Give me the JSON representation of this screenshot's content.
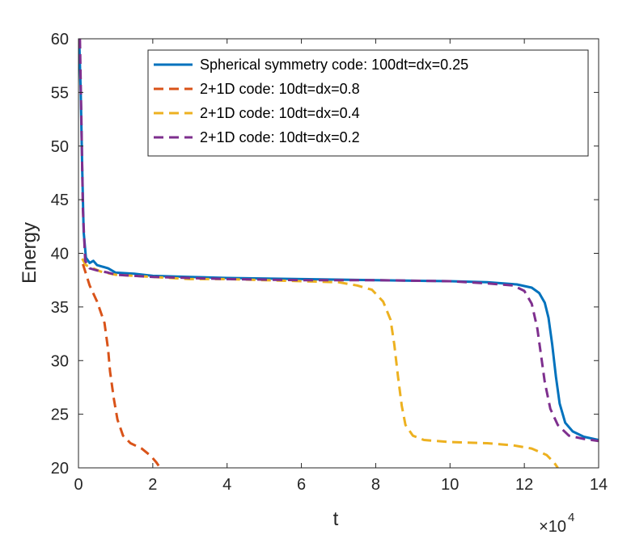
{
  "chart_data": {
    "type": "line",
    "title": "",
    "xlabel": "t",
    "ylabel": "Energy",
    "x_exponent_base": "×10",
    "x_exponent_power": "4",
    "xlim": [
      0,
      14
    ],
    "ylim": [
      20,
      60
    ],
    "x_ticks": [
      "0",
      "2",
      "4",
      "6",
      "8",
      "10",
      "12",
      "14"
    ],
    "y_ticks": [
      "20",
      "25",
      "30",
      "35",
      "40",
      "45",
      "50",
      "55",
      "60"
    ],
    "grid": false,
    "legend_position": "top-right",
    "series": [
      {
        "name": "Spherical symmetry code: 100dt=dx=0.25",
        "color": "#0072BD",
        "style": "solid",
        "points": [
          [
            0.02,
            60
          ],
          [
            0.06,
            55
          ],
          [
            0.1,
            48
          ],
          [
            0.14,
            42
          ],
          [
            0.2,
            39.6
          ],
          [
            0.3,
            39.1
          ],
          [
            0.4,
            39.3
          ],
          [
            0.5,
            38.9
          ],
          [
            0.6,
            38.8
          ],
          [
            0.8,
            38.6
          ],
          [
            1.0,
            38.2
          ],
          [
            1.5,
            38.1
          ],
          [
            2.0,
            37.9
          ],
          [
            3.0,
            37.8
          ],
          [
            4.0,
            37.7
          ],
          [
            6.0,
            37.6
          ],
          [
            8.0,
            37.5
          ],
          [
            10.0,
            37.4
          ],
          [
            11.0,
            37.3
          ],
          [
            11.8,
            37.1
          ],
          [
            12.2,
            36.8
          ],
          [
            12.4,
            36.3
          ],
          [
            12.55,
            35.4
          ],
          [
            12.65,
            34.0
          ],
          [
            12.75,
            31.5
          ],
          [
            12.85,
            28.5
          ],
          [
            12.95,
            26.0
          ],
          [
            13.1,
            24.2
          ],
          [
            13.3,
            23.4
          ],
          [
            13.6,
            22.9
          ],
          [
            14.0,
            22.6
          ]
        ]
      },
      {
        "name": "2+1D code: 10dt=dx=0.8",
        "color": "#D95319",
        "style": "dashed",
        "points": [
          [
            0.12,
            39.0
          ],
          [
            0.3,
            37.0
          ],
          [
            0.5,
            35.5
          ],
          [
            0.7,
            33.5
          ],
          [
            0.8,
            31.0
          ],
          [
            0.85,
            29.0
          ],
          [
            0.95,
            26.5
          ],
          [
            1.05,
            24.5
          ],
          [
            1.2,
            23.0
          ],
          [
            1.4,
            22.3
          ],
          [
            1.7,
            21.8
          ],
          [
            1.95,
            21.1
          ],
          [
            2.1,
            20.5
          ],
          [
            2.2,
            20.0
          ]
        ]
      },
      {
        "name": "2+1D code: 10dt=dx=0.4",
        "color": "#EDB120",
        "style": "dashed",
        "points": [
          [
            0.1,
            39.5
          ],
          [
            0.2,
            38.9
          ],
          [
            0.4,
            38.6
          ],
          [
            0.6,
            38.3
          ],
          [
            1.0,
            38.0
          ],
          [
            2.0,
            37.8
          ],
          [
            3.0,
            37.6
          ],
          [
            4.0,
            37.6
          ],
          [
            6.0,
            37.4
          ],
          [
            7.0,
            37.3
          ],
          [
            7.5,
            37.0
          ],
          [
            7.9,
            36.6
          ],
          [
            8.2,
            35.5
          ],
          [
            8.4,
            33.8
          ],
          [
            8.5,
            31.5
          ],
          [
            8.6,
            28.5
          ],
          [
            8.7,
            25.8
          ],
          [
            8.8,
            24.0
          ],
          [
            9.0,
            23.0
          ],
          [
            9.3,
            22.6
          ],
          [
            10.0,
            22.4
          ],
          [
            11.0,
            22.3
          ],
          [
            11.7,
            22.1
          ],
          [
            12.2,
            21.8
          ],
          [
            12.6,
            21.2
          ],
          [
            12.8,
            20.5
          ],
          [
            12.9,
            20.0
          ]
        ]
      },
      {
        "name": "2+1D code: 10dt=dx=0.2",
        "color": "#7E2F8E",
        "style": "dashed",
        "points": [
          [
            0.04,
            60
          ],
          [
            0.08,
            52
          ],
          [
            0.12,
            44
          ],
          [
            0.18,
            39.3
          ],
          [
            0.3,
            38.6
          ],
          [
            0.5,
            38.4
          ],
          [
            0.8,
            38.2
          ],
          [
            1.0,
            38.0
          ],
          [
            1.5,
            37.9
          ],
          [
            2.0,
            37.8
          ],
          [
            3.0,
            37.7
          ],
          [
            4.0,
            37.6
          ],
          [
            6.0,
            37.5
          ],
          [
            8.0,
            37.5
          ],
          [
            10.0,
            37.4
          ],
          [
            11.0,
            37.2
          ],
          [
            11.7,
            37.0
          ],
          [
            12.0,
            36.5
          ],
          [
            12.2,
            35.3
          ],
          [
            12.35,
            33.0
          ],
          [
            12.45,
            30.5
          ],
          [
            12.55,
            28.0
          ],
          [
            12.7,
            25.5
          ],
          [
            12.9,
            24.0
          ],
          [
            13.2,
            23.0
          ],
          [
            13.6,
            22.7
          ],
          [
            14.0,
            22.5
          ]
        ]
      }
    ]
  }
}
